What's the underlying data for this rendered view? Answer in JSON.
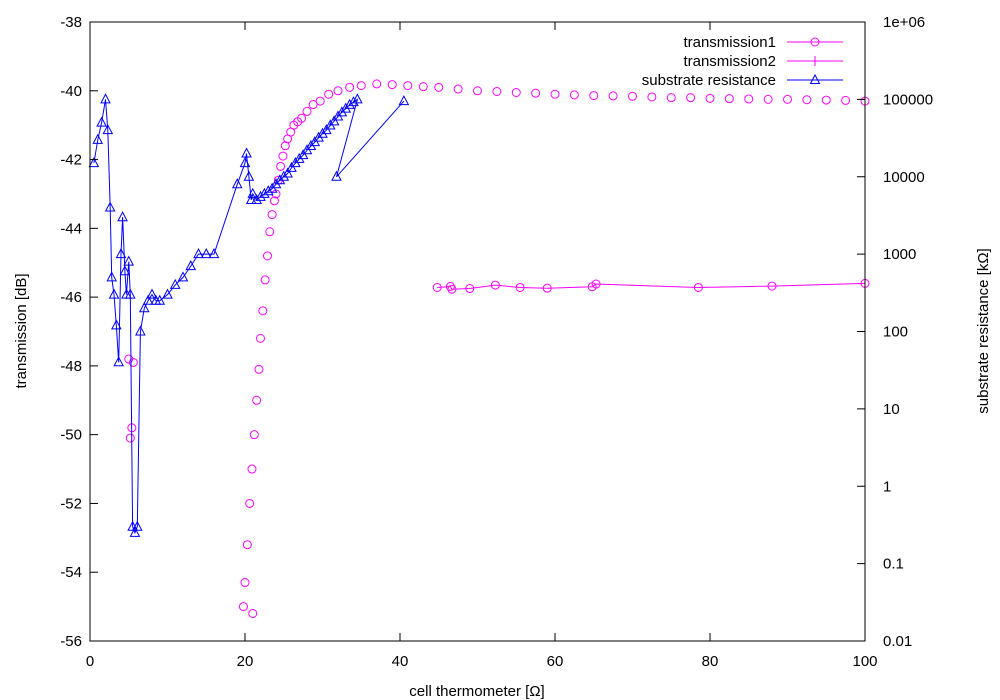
{
  "chart_data": {
    "type": "scatter",
    "title": "",
    "xlabel": "cell thermometer [Ω]",
    "ylabel": "transmission [dB]",
    "y2label": "substrate resistance [kΩ]",
    "xlim": [
      0,
      100
    ],
    "ylim": [
      -56,
      -38
    ],
    "y2lim": [
      0.01,
      1000000
    ],
    "y2_scale": "log",
    "grid": false,
    "legend_position": "top-right",
    "x_ticks": [
      "0",
      "20",
      "40",
      "60",
      "80",
      "100"
    ],
    "y_ticks": [
      "-56",
      "-54",
      "-52",
      "-50",
      "-48",
      "-46",
      "-44",
      "-42",
      "-40",
      "-38"
    ],
    "y2_ticks": [
      "0.01",
      "0.1",
      "1",
      "10",
      "100",
      "1000",
      "10000",
      "100000",
      "1e+06"
    ],
    "colors": {
      "transmission": "#ff00ff",
      "resistance": "#0000ff"
    },
    "series": [
      {
        "name": "transmission1",
        "axis": "y",
        "marker": "circle",
        "style": "points",
        "color": "#ff00ff",
        "x": [
          5.0,
          5.2,
          5.4,
          5.6,
          19.8,
          20.0,
          20.3,
          20.6,
          20.9,
          21.0,
          21.2,
          21.5,
          21.8,
          22.0,
          22.3,
          22.6,
          22.9,
          23.2,
          23.5,
          23.8,
          24.0,
          24.3,
          24.6,
          24.9,
          25.2,
          25.5,
          25.9,
          26.3,
          26.8,
          27.3,
          28.0,
          28.8,
          29.7,
          30.8,
          32.0,
          33.5,
          35.0,
          37.0,
          39.0,
          41.0,
          43.0,
          45.0,
          47.5,
          50.0,
          52.5,
          55.0,
          57.5,
          60.0,
          62.5,
          65.0,
          67.5,
          70.0,
          72.5,
          75.0,
          77.5,
          80.0,
          82.5,
          85.0,
          87.5,
          90.0,
          92.5,
          95.0,
          97.5,
          100.0
        ],
        "y": [
          -47.8,
          -50.1,
          -49.8,
          -47.9,
          -55.0,
          -54.3,
          -53.2,
          -52.0,
          -51.0,
          -55.2,
          -50.0,
          -49.0,
          -48.1,
          -47.2,
          -46.4,
          -45.5,
          -44.8,
          -44.1,
          -43.6,
          -43.2,
          -43.0,
          -42.6,
          -42.2,
          -41.9,
          -41.6,
          -41.4,
          -41.2,
          -41.0,
          -40.9,
          -40.8,
          -40.6,
          -40.4,
          -40.3,
          -40.1,
          -40.0,
          -39.9,
          -39.85,
          -39.8,
          -39.82,
          -39.85,
          -39.88,
          -39.9,
          -39.95,
          -40.0,
          -40.02,
          -40.05,
          -40.07,
          -40.1,
          -40.12,
          -40.14,
          -40.15,
          -40.16,
          -40.18,
          -40.2,
          -40.2,
          -40.22,
          -40.23,
          -40.24,
          -40.25,
          -40.25,
          -40.26,
          -40.27,
          -40.28,
          -40.3
        ]
      },
      {
        "name": "transmission2",
        "axis": "y",
        "marker": "circle",
        "style": "linespoints",
        "color": "#ff00ff",
        "x": [
          44.8,
          46.5,
          46.7,
          49.0,
          52.3,
          55.5,
          59.0,
          64.8,
          65.3,
          78.5,
          88.0,
          100.0
        ],
        "y": [
          -45.72,
          -45.69,
          -45.77,
          -45.75,
          -45.65,
          -45.72,
          -45.74,
          -45.7,
          -45.62,
          -45.72,
          -45.68,
          -45.6
        ]
      },
      {
        "name": "substrate resistance",
        "axis": "y2",
        "marker": "triangle",
        "style": "linespoints",
        "color": "#0000ff",
        "x": [
          0.5,
          1.0,
          1.5,
          2.0,
          2.3,
          2.6,
          2.8,
          3.1,
          3.4,
          3.7,
          4.0,
          4.2,
          4.5,
          4.7,
          5.0,
          5.2,
          5.5,
          5.8,
          6.1,
          6.5,
          7.0,
          7.5,
          8.0,
          8.5,
          9.0,
          10.0,
          11.0,
          12.0,
          13.0,
          14.0,
          15.0,
          16.0,
          19.0,
          20.0,
          20.2,
          20.5,
          20.8,
          21.0,
          21.5,
          22.0,
          22.5,
          23.0,
          23.5,
          24.0,
          24.5,
          25.0,
          25.5,
          26.0,
          26.5,
          27.0,
          27.5,
          28.0,
          28.5,
          29.0,
          29.5,
          30.0,
          30.5,
          31.0,
          31.5,
          32.0,
          32.5,
          33.0,
          33.5,
          34.0,
          34.5,
          31.8,
          40.5
        ],
        "y": [
          15000,
          30000,
          50000,
          100000,
          40000,
          4000,
          500,
          300,
          120,
          40,
          1000,
          3000,
          600,
          300,
          800,
          300,
          0.3,
          0.25,
          0.3,
          100,
          200,
          250,
          300,
          250,
          250,
          300,
          400,
          500,
          700,
          1000,
          1000,
          1000,
          8000,
          15000,
          20000,
          10000,
          5000,
          6000,
          5000,
          5500,
          6000,
          6500,
          7000,
          8000,
          9000,
          10000,
          11000,
          13000,
          15000,
          17000,
          19000,
          22000,
          25000,
          28000,
          32000,
          36000,
          40000,
          46000,
          52000,
          60000,
          68000,
          76000,
          85000,
          92000,
          100000,
          10000,
          95000
        ]
      }
    ]
  }
}
